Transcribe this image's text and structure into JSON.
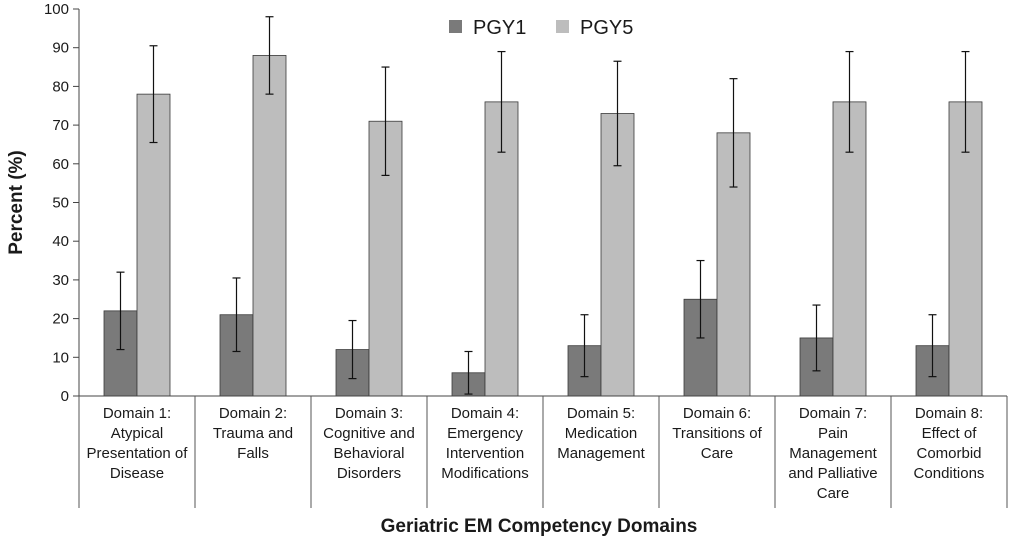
{
  "chart_data": {
    "type": "bar",
    "xlabel": "Geriatric EM Competency Domains",
    "ylabel": "Percent (%)",
    "ylim": [
      0,
      100
    ],
    "yticks": [
      0,
      10,
      20,
      30,
      40,
      50,
      60,
      70,
      80,
      90,
      100
    ],
    "grid": false,
    "legend_position": "top-center",
    "error_bars": true,
    "categories": [
      [
        "Domain 1:",
        "Atypical",
        "Presentation of",
        "Disease"
      ],
      [
        "Domain 2:",
        "Trauma and",
        "Falls"
      ],
      [
        "Domain 3:",
        "Cognitive and",
        "Behavioral",
        "Disorders"
      ],
      [
        "Domain 4:",
        "Emergency",
        "Intervention",
        "Modifications"
      ],
      [
        "Domain 5:",
        "Medication",
        "Management"
      ],
      [
        "Domain 6:",
        "Transitions of",
        "Care"
      ],
      [
        "Domain 7:",
        "Pain",
        "Management",
        "and Palliative",
        "Care"
      ],
      [
        "Domain 8:",
        "Effect of",
        "Comorbid",
        "Conditions"
      ]
    ],
    "series": [
      {
        "name": "PGY1",
        "color": "#7a7a7a",
        "values": [
          22,
          21,
          12,
          6,
          13,
          25,
          15,
          13
        ],
        "error_low": [
          12,
          11.5,
          4.5,
          0.5,
          5,
          15,
          6.5,
          5
        ],
        "error_high": [
          32,
          30.5,
          19.5,
          11.5,
          21,
          35,
          23.5,
          21
        ]
      },
      {
        "name": "PGY5",
        "color": "#bdbdbd",
        "values": [
          78,
          88,
          71,
          76,
          73,
          68,
          76,
          76
        ],
        "error_low": [
          65.5,
          78,
          57,
          63,
          59.5,
          54,
          63,
          63
        ],
        "error_high": [
          90.5,
          98,
          85,
          89,
          86.5,
          82,
          89,
          89
        ]
      }
    ]
  }
}
